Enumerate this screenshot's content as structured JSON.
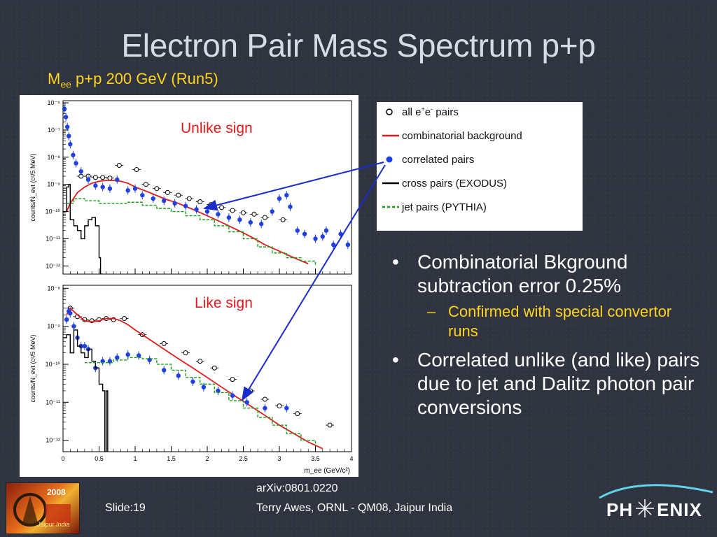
{
  "slide": {
    "title": "Electron Pair Mass Spectrum p+p",
    "subtitle_main": "M",
    "subtitle_sub": "ee",
    "subtitle_rest": " p+p 200 GeV (Run5)",
    "slide_number": "Slide:19",
    "reference": "arXiv:0801.0220",
    "credit": "Terry Awes, ORNL - QM08, Jaipur India",
    "logo_left_text": "2008",
    "logo_left_sub": "Jaipur India",
    "logo_right_text_left": "PH",
    "logo_right_text_right": "ENIX"
  },
  "bullets": [
    {
      "text": "Combinatorial Bkground subtraction error 0.25%",
      "sub": "Confirmed with special convertor runs"
    },
    {
      "text": "Correlated unlike (and like) pairs due to jet and Dalitz photon pair conversions"
    }
  ],
  "legend": [
    {
      "label_pre": "all e",
      "label_sup1": "+",
      "label_mid": "e",
      "label_sup2": "-",
      "label_post": " pairs",
      "symbol": "open-circle"
    },
    {
      "label": "combinatorial background",
      "symbol": "red-line",
      "color": "#e31a1c"
    },
    {
      "label": "correlated pairs",
      "symbol": "blue-dot",
      "color": "#1f3fe0"
    },
    {
      "label": "cross pairs (EXODUS)",
      "symbol": "black-line",
      "color": "#000000"
    },
    {
      "label": "jet pairs (PYTHIA)",
      "symbol": "green-dash",
      "color": "#1a9e1a"
    }
  ],
  "chart_data": [
    {
      "type": "scatter",
      "panel_label": "Unlike sign",
      "ylabel": "counts/N_evt (c²/5 MeV)",
      "yscale": "log",
      "ylim": [
        5e-13,
        1.2e-06
      ],
      "xlim": [
        0,
        4
      ],
      "yticks": [
        "10⁻⁶",
        "10⁻⁷",
        "10⁻⁸",
        "10⁻⁹",
        "10⁻¹⁰",
        "10⁻¹¹",
        "10⁻¹²"
      ],
      "series": [
        {
          "name": "all e+e- pairs",
          "style": "open-circle",
          "x": [
            0.25,
            0.35,
            0.45,
            0.55,
            0.65,
            0.78,
            1.02,
            1.15,
            1.3,
            1.45,
            1.6,
            1.75,
            1.9,
            2.05,
            2.2,
            2.35,
            2.5,
            2.65,
            2.8,
            3.05
          ],
          "y": [
            2e-09,
            2e-09,
            1.8e-09,
            1.8e-09,
            1.7e-09,
            5e-09,
            3.5e-09,
            1e-09,
            7e-10,
            5e-10,
            4e-10,
            3e-10,
            2.3e-10,
            1.8e-10,
            1.4e-10,
            1.1e-10,
            9e-11,
            8e-11,
            6e-11,
            5e-11
          ]
        },
        {
          "name": "combinatorial background",
          "style": "red-line",
          "x": [
            0.05,
            0.1,
            0.2,
            0.3,
            0.4,
            0.5,
            0.6,
            0.7,
            0.8,
            0.9,
            1.0,
            1.2,
            1.4,
            1.6,
            1.8,
            2.0,
            2.2,
            2.4,
            2.6,
            2.8,
            3.0,
            3.2,
            3.4
          ],
          "y": [
            1e-10,
            2e-10,
            5e-10,
            8e-10,
            1.1e-09,
            1.3e-09,
            1.4e-09,
            1.4e-09,
            1.3e-09,
            1.1e-09,
            8e-10,
            5e-10,
            3e-10,
            2e-10,
            1.2e-10,
            7e-11,
            4e-11,
            2.2e-11,
            1.2e-11,
            6e-12,
            3.5e-12,
            2e-12,
            1.2e-12
          ]
        },
        {
          "name": "correlated pairs",
          "style": "blue-dot",
          "x": [
            0.02,
            0.04,
            0.06,
            0.08,
            0.1,
            0.14,
            0.18,
            0.25,
            0.35,
            0.45,
            0.55,
            0.65,
            0.75,
            0.9,
            1.0,
            1.1,
            1.25,
            1.4,
            1.55,
            1.7,
            1.85,
            2.0,
            2.15,
            2.3,
            2.45,
            2.6,
            2.75,
            2.9,
            3.0,
            3.1,
            3.15,
            3.25,
            3.35,
            3.5,
            3.6,
            3.65,
            3.75,
            3.85,
            3.95
          ],
          "y": [
            6e-07,
            3e-07,
            1.3e-07,
            6e-08,
            3e-08,
            1.2e-08,
            6e-09,
            3e-09,
            1.5e-09,
            9e-10,
            8e-10,
            7e-10,
            1.5e-09,
            6e-10,
            7e-10,
            4e-10,
            3e-10,
            2.5e-10,
            2e-10,
            1.6e-10,
            1.2e-10,
            1e-10,
            8e-11,
            6e-11,
            5e-11,
            4e-11,
            3.5e-11,
            1e-10,
            3e-10,
            4e-10,
            1.5e-10,
            2e-11,
            1.5e-11,
            1e-11,
            1.2e-11,
            2e-11,
            6e-12,
            1.5e-11,
            6e-12
          ]
        },
        {
          "name": "cross pairs (EXODUS)",
          "style": "black-line",
          "x": [
            0.0,
            0.05,
            0.08,
            0.1,
            0.13,
            0.15,
            0.2,
            0.25,
            0.3,
            0.35,
            0.4,
            0.45,
            0.5,
            0.52,
            0.55
          ],
          "y": [
            1e-10,
            8e-10,
            1e-09,
            5e-11,
            5e-11,
            3e-11,
            2e-11,
            1e-11,
            3e-11,
            5e-11,
            6e-11,
            3e-11,
            2e-12,
            5e-13,
            5e-13
          ]
        },
        {
          "name": "jet pairs (PYTHIA)",
          "style": "green-dash",
          "x": [
            0.05,
            0.15,
            0.3,
            0.5,
            0.7,
            0.9,
            1.1,
            1.3,
            1.5,
            1.7,
            1.9,
            2.1,
            2.3,
            2.5,
            2.7,
            2.9,
            3.1,
            3.3,
            3.5
          ],
          "y": [
            2e-10,
            3e-10,
            2.5e-10,
            2e-10,
            2e-10,
            2.2e-10,
            1.7e-10,
            1.3e-10,
            1e-10,
            7e-11,
            5e-11,
            3e-11,
            1.8e-11,
            1e-11,
            5e-12,
            3e-12,
            2e-12,
            1.5e-12,
            1e-12
          ]
        }
      ]
    },
    {
      "type": "scatter",
      "panel_label": "Like sign",
      "ylabel": "counts/N_evt (c²/5 MeV)",
      "xlabel": "m_ee (GeV/c²)",
      "yscale": "log",
      "ylim": [
        5e-13,
        1.2e-08
      ],
      "xlim": [
        0,
        4
      ],
      "xticks": [
        "0",
        "0.5",
        "1",
        "1.5",
        "2",
        "2.5",
        "3",
        "3.5",
        "4"
      ],
      "yticks": [
        "10⁻⁸",
        "10⁻⁹",
        "10⁻¹⁰",
        "10⁻¹¹",
        "10⁻¹²"
      ],
      "series": [
        {
          "name": "all e+e- pairs",
          "style": "open-circle",
          "x": [
            0.1,
            0.2,
            0.3,
            0.4,
            0.5,
            0.6,
            0.7,
            0.85,
            1.1,
            1.4,
            1.7,
            1.9,
            2.1,
            2.35,
            2.6,
            2.8,
            3.0,
            3.25,
            3.7
          ],
          "y": [
            3e-09,
            1.8e-09,
            1.5e-09,
            1.4e-09,
            1.5e-09,
            1.6e-09,
            1.5e-09,
            1.6e-09,
            6e-10,
            3.5e-10,
            2e-10,
            1.2e-10,
            8e-11,
            4e-11,
            2e-11,
            1.2e-11,
            8e-12,
            5e-12,
            2.5e-12
          ]
        },
        {
          "name": "combinatorial background",
          "style": "red-line",
          "x": [
            0.05,
            0.1,
            0.2,
            0.3,
            0.4,
            0.5,
            0.6,
            0.7,
            0.8,
            0.9,
            1.0,
            1.2,
            1.4,
            1.6,
            1.8,
            2.0,
            2.2,
            2.4,
            2.6,
            2.8,
            3.0,
            3.2,
            3.4,
            3.6
          ],
          "y": [
            2e-09,
            3e-09,
            2e-09,
            1.4e-09,
            1.3e-09,
            1.4e-09,
            1.6e-09,
            1.6e-09,
            1.4e-09,
            1.1e-09,
            8e-10,
            4.5e-10,
            2.5e-10,
            1.4e-10,
            8e-11,
            4.5e-11,
            2.5e-11,
            1.4e-11,
            8e-12,
            4.5e-12,
            2.5e-12,
            1.5e-12,
            9e-13,
            6e-13
          ]
        },
        {
          "name": "correlated pairs",
          "style": "blue-dot",
          "x": [
            0.05,
            0.08,
            0.1,
            0.15,
            0.2,
            0.25,
            0.3,
            0.35,
            0.45,
            0.55,
            0.65,
            0.75,
            0.9,
            1.05,
            1.2,
            1.4,
            1.6,
            1.8,
            1.95,
            2.15,
            2.35,
            2.55,
            2.8,
            3.1
          ],
          "y": [
            1.5e-09,
            2.5e-09,
            2.2e-09,
            1e-09,
            5e-10,
            3e-10,
            3e-10,
            2.5e-10,
            8e-11,
            1.2e-10,
            1.2e-10,
            1.5e-10,
            1.8e-10,
            1.7e-10,
            1.3e-10,
            7e-11,
            5e-11,
            3.5e-11,
            2.5e-11,
            2e-11,
            1.5e-11,
            1e-11,
            7e-12,
            7e-12
          ]
        },
        {
          "name": "cross pairs (EXODUS)",
          "style": "black-line",
          "x": [
            0.0,
            0.05,
            0.1,
            0.15,
            0.2,
            0.25,
            0.3,
            0.35,
            0.4,
            0.45,
            0.5,
            0.55,
            0.58,
            0.6,
            0.62
          ],
          "y": [
            5e-10,
            6e-10,
            2e-10,
            8e-10,
            3e-10,
            2e-10,
            1.5e-10,
            2.5e-10,
            1.2e-10,
            8e-11,
            3e-11,
            2e-11,
            5e-13,
            2e-11,
            5e-13
          ]
        },
        {
          "name": "jet pairs (PYTHIA)",
          "style": "green-dash",
          "x": [
            0.3,
            0.5,
            0.7,
            0.9,
            1.1,
            1.3,
            1.5,
            1.7,
            1.9,
            2.1,
            2.3,
            2.5,
            2.7,
            2.9,
            3.1,
            3.3,
            3.5
          ],
          "y": [
            1.1e-10,
            1.1e-10,
            1.3e-10,
            1.5e-10,
            1.4e-10,
            1e-10,
            7e-11,
            4.5e-11,
            3e-11,
            1.8e-11,
            1.1e-11,
            7e-12,
            4e-12,
            2.5e-12,
            1.5e-12,
            1e-12,
            7e-13
          ]
        }
      ]
    }
  ]
}
